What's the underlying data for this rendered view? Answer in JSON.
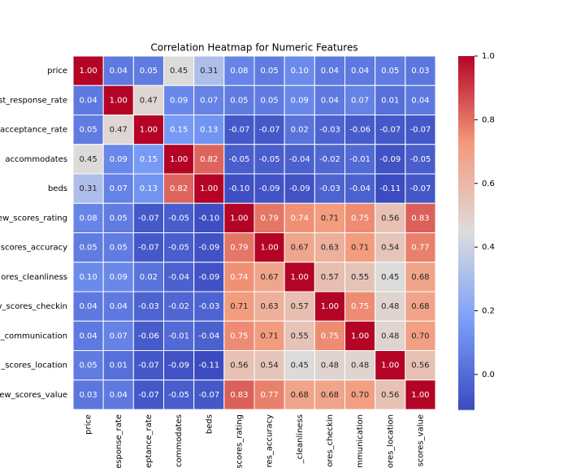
{
  "chart_data": {
    "type": "heatmap",
    "title": "Correlation Heatmap for Numeric Features",
    "y_labels": [
      "price",
      "st_response_rate",
      "acceptance_rate",
      "accommodates",
      "beds",
      "ew_scores_rating",
      "scores_accuracy",
      "ores_cleanliness",
      "v_scores_checkin",
      "_communication",
      "_scores_location",
      "ew_scores_value"
    ],
    "x_labels": [
      "price",
      "esponse_rate",
      "ceptance_rate",
      "commodates",
      "beds",
      "scores_rating",
      "res_accuracy",
      "_cleanliness",
      "ores_checkin",
      "mmunication",
      "ores_location",
      "scores_value"
    ],
    "values": [
      [
        1.0,
        0.04,
        0.05,
        0.45,
        0.31,
        0.08,
        0.05,
        0.1,
        0.04,
        0.04,
        0.05,
        0.03
      ],
      [
        0.04,
        1.0,
        0.47,
        0.09,
        0.07,
        0.05,
        0.05,
        0.09,
        0.04,
        0.07,
        0.01,
        0.04
      ],
      [
        0.05,
        0.47,
        1.0,
        0.15,
        0.13,
        -0.07,
        -0.07,
        0.02,
        -0.03,
        -0.06,
        -0.07,
        -0.07
      ],
      [
        0.45,
        0.09,
        0.15,
        1.0,
        0.82,
        -0.05,
        -0.05,
        -0.04,
        -0.02,
        -0.01,
        -0.09,
        -0.05
      ],
      [
        0.31,
        0.07,
        0.13,
        0.82,
        1.0,
        -0.1,
        -0.09,
        -0.09,
        -0.03,
        -0.04,
        -0.11,
        -0.07
      ],
      [
        0.08,
        0.05,
        -0.07,
        -0.05,
        -0.1,
        1.0,
        0.79,
        0.74,
        0.71,
        0.75,
        0.56,
        0.83
      ],
      [
        0.05,
        0.05,
        -0.07,
        -0.05,
        -0.09,
        0.79,
        1.0,
        0.67,
        0.63,
        0.71,
        0.54,
        0.77
      ],
      [
        0.1,
        0.09,
        0.02,
        -0.04,
        -0.09,
        0.74,
        0.67,
        1.0,
        0.57,
        0.55,
        0.45,
        0.68
      ],
      [
        0.04,
        0.04,
        -0.03,
        -0.02,
        -0.03,
        0.71,
        0.63,
        0.57,
        1.0,
        0.75,
        0.48,
        0.68
      ],
      [
        0.04,
        0.07,
        -0.06,
        -0.01,
        -0.04,
        0.75,
        0.71,
        0.55,
        0.75,
        1.0,
        0.48,
        0.7
      ],
      [
        0.05,
        0.01,
        -0.07,
        -0.09,
        -0.11,
        0.56,
        0.54,
        0.45,
        0.48,
        0.48,
        1.0,
        0.56
      ],
      [
        0.03,
        0.04,
        -0.07,
        -0.05,
        -0.07,
        0.83,
        0.77,
        0.68,
        0.68,
        0.7,
        0.56,
        1.0
      ]
    ],
    "value_labels": [
      [
        "1.00",
        "0.04",
        "0.05",
        "0.45",
        "0.31",
        "0.08",
        "0.05",
        "0.10",
        "0.04",
        "0.04",
        "0.05",
        "0.03"
      ],
      [
        "0.04",
        "1.00",
        "0.47",
        "0.09",
        "0.07",
        "0.05",
        "0.05",
        "0.09",
        "0.04",
        "0.07",
        "0.01",
        "0.04"
      ],
      [
        "0.05",
        "0.47",
        "1.00",
        "0.15",
        "0.13",
        "-0.07",
        "-0.07",
        "0.02",
        "-0.03",
        "-0.06",
        "-0.07",
        "-0.07"
      ],
      [
        "0.45",
        "0.09",
        "0.15",
        "1.00",
        "0.82",
        "-0.05",
        "-0.05",
        "-0.04",
        "-0.02",
        "-0.01",
        "-0.09",
        "-0.05"
      ],
      [
        "0.31",
        "0.07",
        "0.13",
        "0.82",
        "1.00",
        "-0.10",
        "-0.09",
        "-0.09",
        "-0.03",
        "-0.04",
        "-0.11",
        "-0.07"
      ],
      [
        "0.08",
        "0.05",
        "-0.07",
        "-0.05",
        "-0.10",
        "1.00",
        "0.79",
        "0.74",
        "0.71",
        "0.75",
        "0.56",
        "0.83"
      ],
      [
        "0.05",
        "0.05",
        "-0.07",
        "-0.05",
        "-0.09",
        "0.79",
        "1.00",
        "0.67",
        "0.63",
        "0.71",
        "0.54",
        "0.77"
      ],
      [
        "0.10",
        "0.09",
        "0.02",
        "-0.04",
        "-0.09",
        "0.74",
        "0.67",
        "1.00",
        "0.57",
        "0.55",
        "0.45",
        "0.68"
      ],
      [
        "0.04",
        "0.04",
        "-0.03",
        "-0.02",
        "-0.03",
        "0.71",
        "0.63",
        "0.57",
        "1.00",
        "0.75",
        "0.48",
        "0.68"
      ],
      [
        "0.04",
        "0.07",
        "-0.06",
        "-0.01",
        "-0.04",
        "0.75",
        "0.71",
        "0.55",
        "0.75",
        "1.00",
        "0.48",
        "0.70"
      ],
      [
        "0.05",
        "0.01",
        "-0.07",
        "-0.09",
        "-0.11",
        "0.56",
        "0.54",
        "0.45",
        "0.48",
        "0.48",
        "1.00",
        "0.56"
      ],
      [
        "0.03",
        "0.04",
        "-0.07",
        "-0.05",
        "-0.07",
        "0.83",
        "0.77",
        "0.68",
        "0.68",
        "0.70",
        "0.56",
        "1.00"
      ]
    ],
    "colormap": "coolwarm",
    "vlim": [
      -0.11,
      1.0
    ],
    "cticks": [
      {
        "value": 0,
        "label": "0.0"
      },
      {
        "value": 0.2,
        "label": "0.2"
      },
      {
        "value": 0.4,
        "label": "0.4"
      },
      {
        "value": 0.6,
        "label": "0.6"
      },
      {
        "value": 0.8,
        "label": "0.8"
      },
      {
        "value": 1.0,
        "label": "1.0"
      }
    ]
  }
}
